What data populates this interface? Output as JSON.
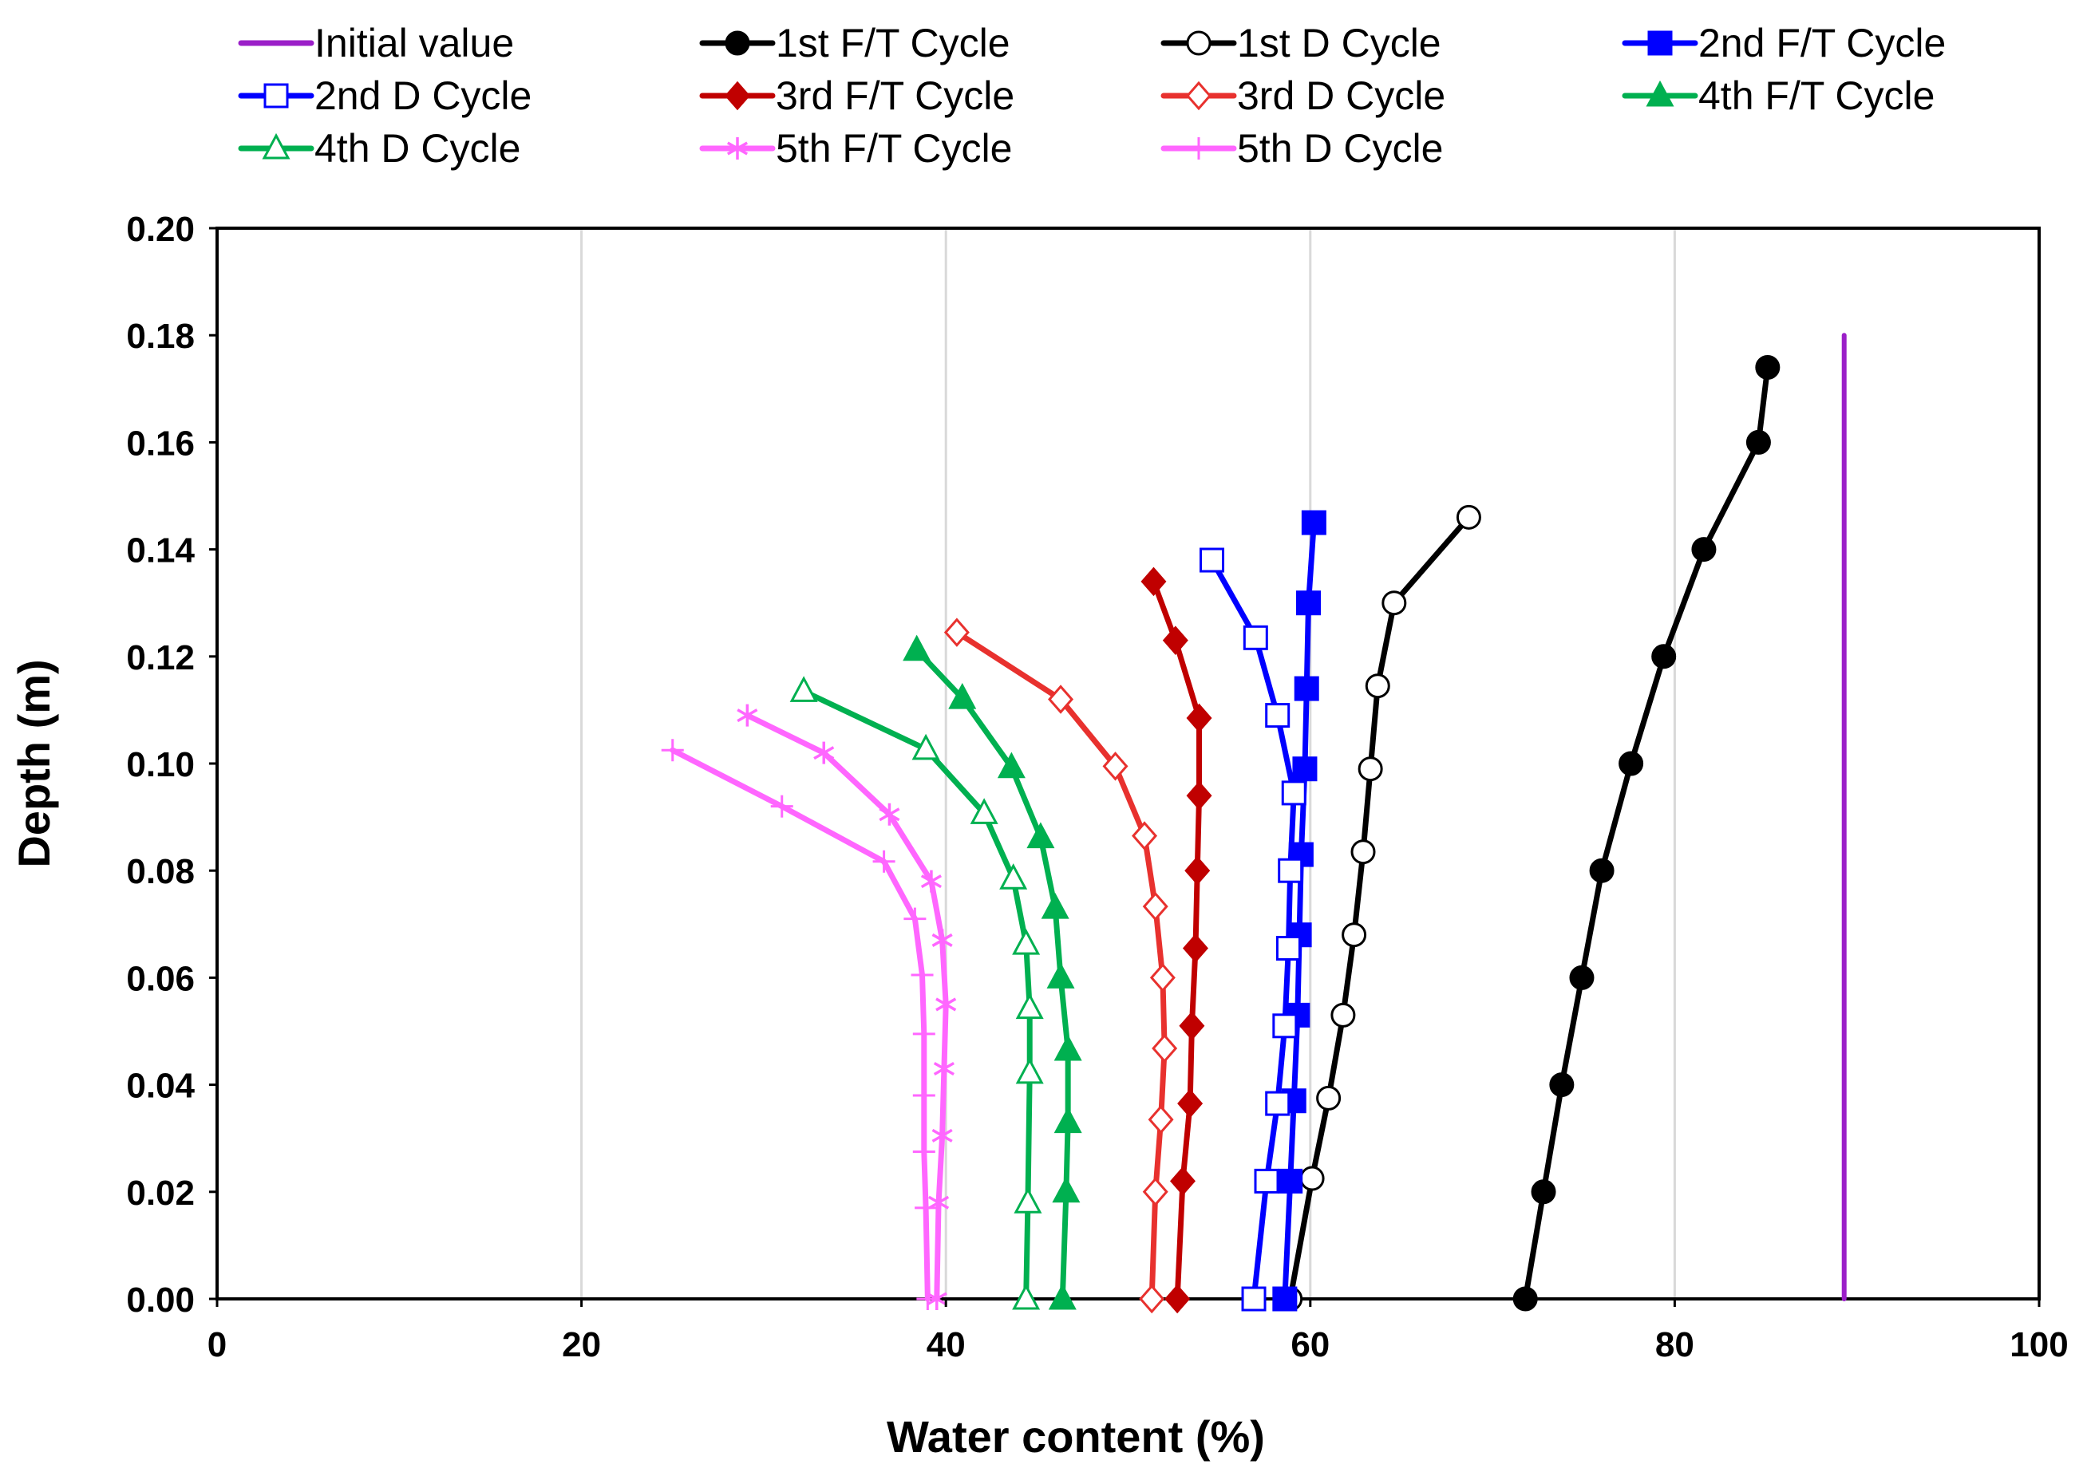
{
  "chart_data": {
    "type": "line",
    "title": "",
    "xlabel": "Water content (%)",
    "ylabel": "Depth (m)",
    "xlim": [
      0,
      100
    ],
    "ylim": [
      0,
      0.2
    ],
    "xticks": [
      0,
      20,
      40,
      60,
      80,
      100
    ],
    "xtick_labels": [
      "0",
      "20",
      "40",
      "60",
      "80",
      "100"
    ],
    "yticks": [
      0,
      0.02,
      0.04,
      0.06,
      0.08,
      0.1,
      0.12,
      0.14,
      0.16,
      0.18,
      0.2
    ],
    "ytick_labels": [
      "0.00",
      "0.02",
      "0.04",
      "0.06",
      "0.08",
      "0.10",
      "0.12",
      "0.14",
      "0.16",
      "0.18",
      "0.20"
    ],
    "grid": "vertical",
    "legend_position": "top",
    "series": [
      {
        "name": "Initial value",
        "color": "#9b1fc8",
        "marker": "none",
        "points": [
          [
            89.3,
            0.0
          ],
          [
            89.3,
            0.18
          ]
        ]
      },
      {
        "name": "1st F/T Cycle",
        "color": "#000000",
        "marker": "circle-filled",
        "points": [
          [
            71.8,
            0.0
          ],
          [
            72.8,
            0.02
          ],
          [
            73.8,
            0.04
          ],
          [
            74.9,
            0.06
          ],
          [
            76.0,
            0.08
          ],
          [
            77.6,
            0.1
          ],
          [
            79.4,
            0.12
          ],
          [
            81.6,
            0.14
          ],
          [
            84.6,
            0.16
          ],
          [
            85.1,
            0.174
          ]
        ]
      },
      {
        "name": "1st D Cycle",
        "color": "#000000",
        "marker": "circle-open",
        "points": [
          [
            58.9,
            0.0
          ],
          [
            60.1,
            0.0225
          ],
          [
            61.0,
            0.0375
          ],
          [
            61.8,
            0.053
          ],
          [
            62.4,
            0.068
          ],
          [
            62.9,
            0.0835
          ],
          [
            63.3,
            0.099
          ],
          [
            63.7,
            0.1145
          ],
          [
            64.6,
            0.13
          ],
          [
            68.7,
            0.146
          ]
        ]
      },
      {
        "name": "2nd F/T Cycle",
        "color": "#0000ff",
        "marker": "square-filled",
        "points": [
          [
            58.6,
            0.0
          ],
          [
            58.9,
            0.022
          ],
          [
            59.1,
            0.037
          ],
          [
            59.3,
            0.053
          ],
          [
            59.4,
            0.068
          ],
          [
            59.5,
            0.083
          ],
          [
            59.7,
            0.099
          ],
          [
            59.8,
            0.114
          ],
          [
            59.9,
            0.13
          ],
          [
            60.2,
            0.145
          ]
        ]
      },
      {
        "name": "2nd D Cycle",
        "color": "#0000ff",
        "marker": "square-open",
        "points": [
          [
            56.9,
            0.0
          ],
          [
            57.6,
            0.022
          ],
          [
            58.2,
            0.0365
          ],
          [
            58.6,
            0.051
          ],
          [
            58.8,
            0.0655
          ],
          [
            58.9,
            0.08
          ],
          [
            59.1,
            0.0945
          ],
          [
            58.2,
            0.109
          ],
          [
            57.0,
            0.1235
          ],
          [
            54.6,
            0.138
          ]
        ]
      },
      {
        "name": "3rd F/T Cycle",
        "color": "#c00000",
        "marker": "diamond-filled",
        "points": [
          [
            52.7,
            0.0
          ],
          [
            53.0,
            0.022
          ],
          [
            53.4,
            0.0365
          ],
          [
            53.5,
            0.051
          ],
          [
            53.7,
            0.0655
          ],
          [
            53.8,
            0.08
          ],
          [
            53.9,
            0.094
          ],
          [
            53.9,
            0.1085
          ],
          [
            52.6,
            0.123
          ],
          [
            51.4,
            0.134
          ]
        ]
      },
      {
        "name": "3rd D Cycle",
        "color": "#e8312e",
        "marker": "diamond-open",
        "points": [
          [
            51.3,
            0.0
          ],
          [
            51.5,
            0.02
          ],
          [
            51.8,
            0.0335
          ],
          [
            52.0,
            0.0468
          ],
          [
            51.9,
            0.06
          ],
          [
            51.5,
            0.0733
          ],
          [
            50.9,
            0.0865
          ],
          [
            49.3,
            0.0995
          ],
          [
            46.3,
            0.112
          ],
          [
            40.6,
            0.1245
          ]
        ]
      },
      {
        "name": "4th F/T Cycle",
        "color": "#00b050",
        "marker": "triangle-filled",
        "points": [
          [
            46.4,
            0.0
          ],
          [
            46.6,
            0.02
          ],
          [
            46.7,
            0.033
          ],
          [
            46.7,
            0.0465
          ],
          [
            46.3,
            0.06
          ],
          [
            46.0,
            0.073
          ],
          [
            45.2,
            0.0862
          ],
          [
            43.6,
            0.0993
          ],
          [
            40.9,
            0.1122
          ],
          [
            38.4,
            0.1212
          ]
        ]
      },
      {
        "name": "4th D Cycle",
        "color": "#00b050",
        "marker": "triangle-open",
        "points": [
          [
            44.4,
            0.0
          ],
          [
            44.5,
            0.018
          ],
          [
            44.6,
            0.0422
          ],
          [
            44.6,
            0.0543
          ],
          [
            44.4,
            0.0663
          ],
          [
            43.7,
            0.0785
          ],
          [
            42.1,
            0.0907
          ],
          [
            38.9,
            0.1027
          ],
          [
            32.2,
            0.1135
          ]
        ]
      },
      {
        "name": "5th F/T Cycle",
        "color": "#ff66ff",
        "marker": "star",
        "points": [
          [
            39.5,
            0.0
          ],
          [
            39.6,
            0.018
          ],
          [
            39.8,
            0.0305
          ],
          [
            39.9,
            0.043
          ],
          [
            40.0,
            0.055
          ],
          [
            39.8,
            0.067
          ],
          [
            39.2,
            0.078
          ],
          [
            36.9,
            0.0905
          ],
          [
            33.3,
            0.102
          ],
          [
            29.1,
            0.109
          ]
        ]
      },
      {
        "name": "5th D Cycle",
        "color": "#ff66ff",
        "marker": "plus",
        "points": [
          [
            39.0,
            0.0
          ],
          [
            38.9,
            0.017
          ],
          [
            38.8,
            0.0275
          ],
          [
            38.8,
            0.038
          ],
          [
            38.8,
            0.0495
          ],
          [
            38.7,
            0.0605
          ],
          [
            38.3,
            0.071
          ],
          [
            36.6,
            0.0817
          ],
          [
            31.0,
            0.092
          ],
          [
            25.0,
            0.1025
          ]
        ]
      }
    ]
  }
}
